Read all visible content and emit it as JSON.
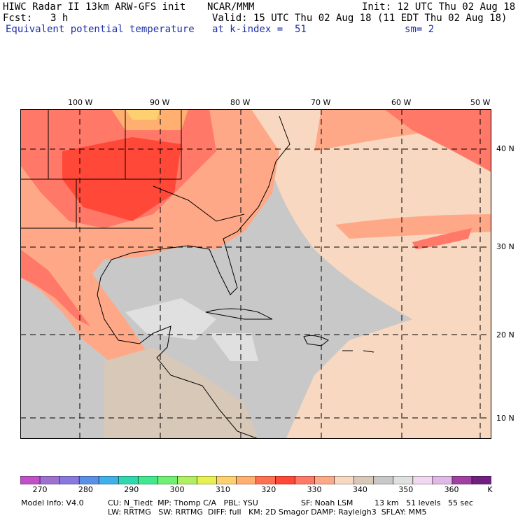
{
  "header": {
    "title": "HIWC Radar II 13km ARW-GFS init",
    "source": "NCAR/MMM",
    "init": "Init: 12 UTC Thu 02 Aug 18",
    "fcst_label": "Fcst:",
    "fcst_value": "3 h",
    "valid": "Valid: 15 UTC Thu 02 Aug 18 (11 EDT Thu 02 Aug 18)",
    "field": "Equivalent potential temperature",
    "level": "at k-index =  51",
    "smoothing": "sm= 2"
  },
  "map": {
    "lon_labels": [
      "100 W",
      "90 W",
      "80 W",
      "70 W",
      "60 W",
      "50 W"
    ],
    "lat_labels": [
      "40 N",
      "30 N",
      "20 N",
      "10 N"
    ]
  },
  "colorbar": {
    "colors": [
      "#c050c8",
      "#a070d0",
      "#8878e0",
      "#5890e8",
      "#40b0e8",
      "#30d8b0",
      "#40e890",
      "#70f070",
      "#b0f060",
      "#e8f050",
      "#ffd070",
      "#ffb070",
      "#ff7050",
      "#ff4838",
      "#ff7868",
      "#ffa888",
      "#f8d8c0",
      "#d8c8b8",
      "#c8c8c8",
      "#e0e0e0",
      "#f0d8f0",
      "#e0b8e8",
      "#a040a0",
      "#702080"
    ],
    "ticks": [
      "270",
      "280",
      "290",
      "300",
      "310",
      "320",
      "330",
      "340",
      "350",
      "360"
    ],
    "unit": "K"
  },
  "footer": {
    "line1_a": "Model Info: V4.0",
    "line1_b": "CU: N_Tiedt  MP: Thomp C/A   PBL: YSU",
    "line1_c": "SF: Noah LSM",
    "line1_d": "13 km   51 levels   55 sec",
    "line2": "LW: RRTMG   SW: RRTMG  DIFF: full   KM: 2D Smagor DAMP: Rayleigh3  SFLAY: MM5"
  }
}
